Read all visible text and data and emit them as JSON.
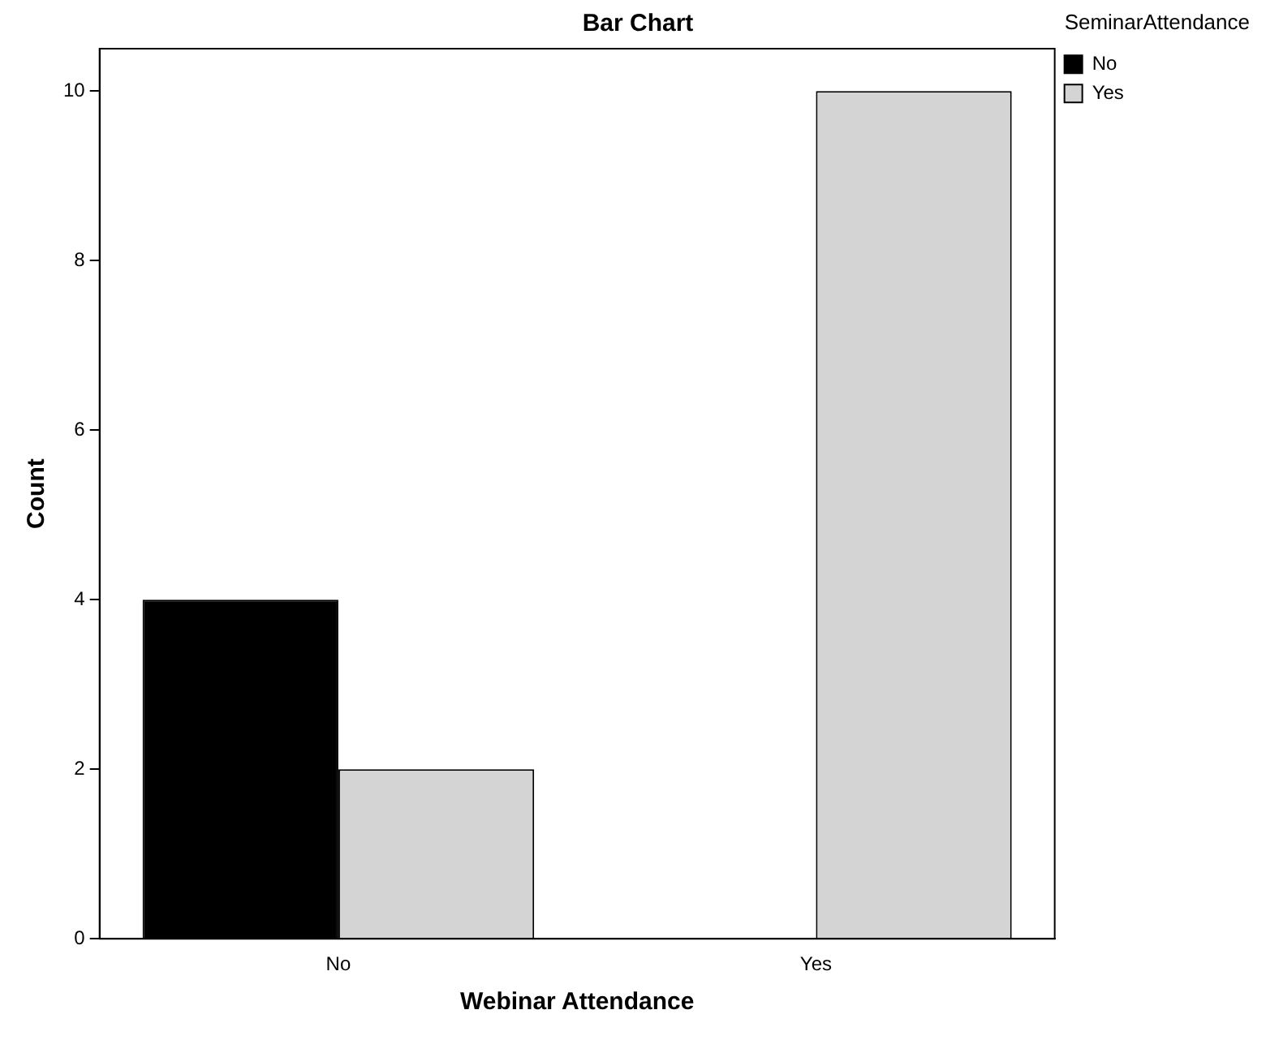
{
  "chart_data": {
    "type": "bar",
    "title": "Bar Chart",
    "xlabel": "Webinar Attendance",
    "ylabel": "Count",
    "legend_title": "SeminarAttendance",
    "categories": [
      "No",
      "Yes"
    ],
    "series": [
      {
        "name": "No",
        "color": "#000000",
        "values": [
          4,
          0
        ]
      },
      {
        "name": "Yes",
        "color": "#d4d4d4",
        "values": [
          2,
          10
        ]
      }
    ],
    "ylim": [
      0,
      10.5
    ],
    "yticks": [
      0,
      2,
      4,
      6,
      8,
      10
    ],
    "grid": false,
    "legend": "top right"
  }
}
